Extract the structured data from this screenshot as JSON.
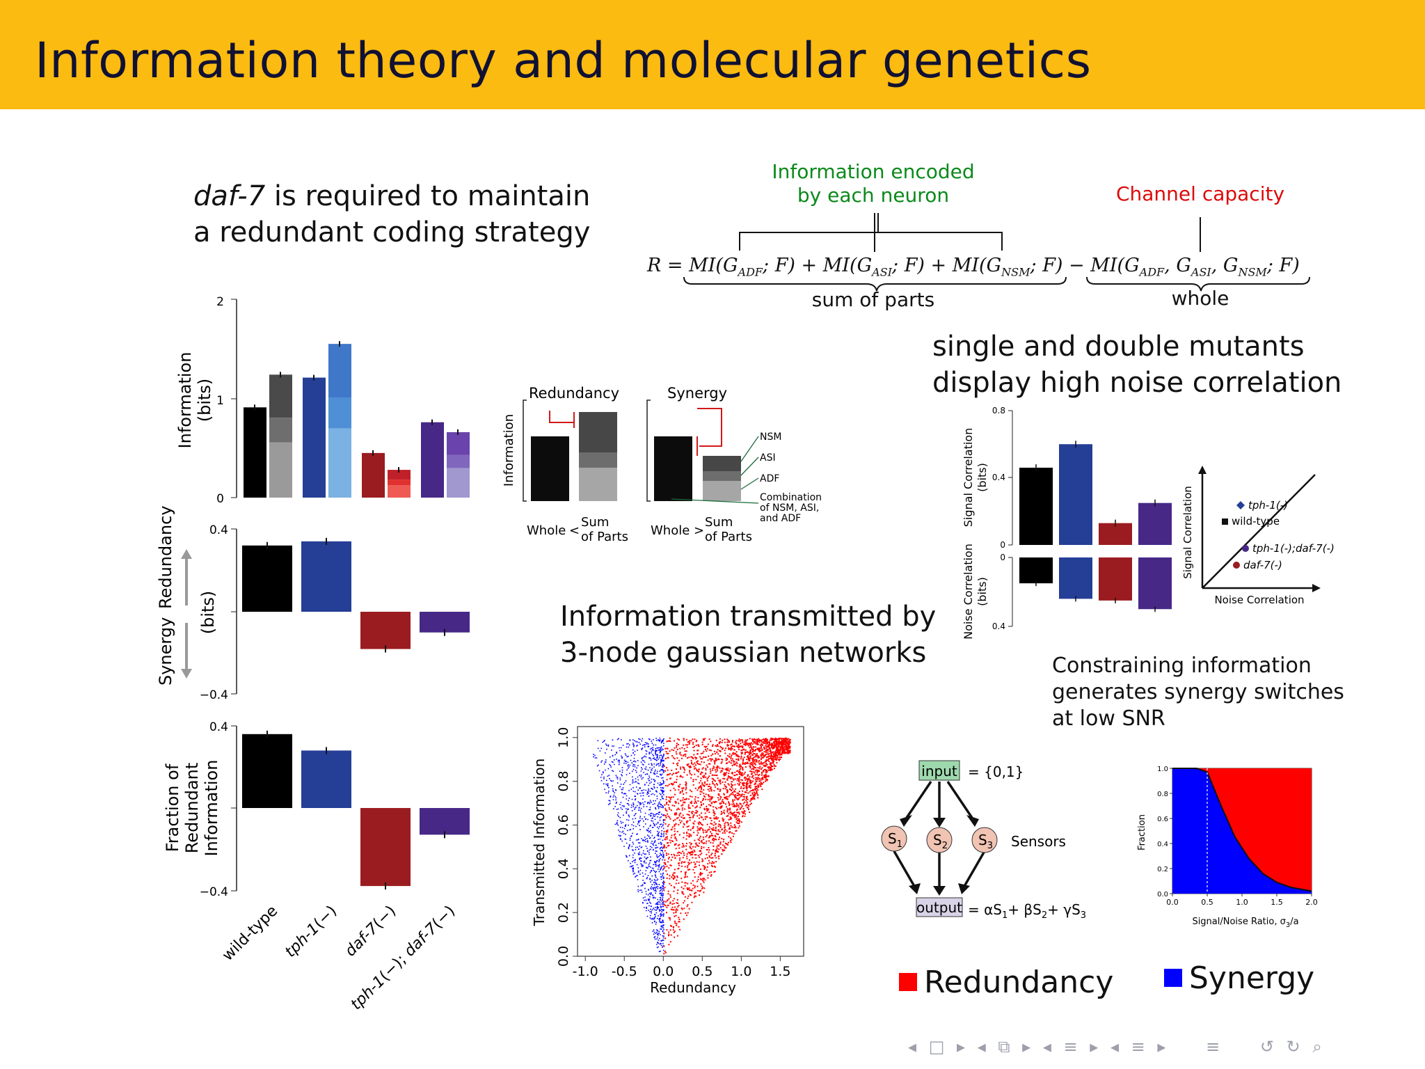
{
  "slide": {
    "title": "Information theory and molecular genetics",
    "colors": {
      "header": "#fbbb10",
      "redundancy": "#ff0000",
      "synergy": "#0000ff",
      "wild_type": "#000000",
      "tph1": "#253e96",
      "daf7": "#9b1c20",
      "double": "#472887"
    }
  },
  "left_heading": {
    "line1_italic": "daf-7",
    "line1_rest": " is required to maintain",
    "line2": "a redundant coding strategy"
  },
  "equation": {
    "encoded_label_1": "Information encoded",
    "encoded_label_2": "by each neuron",
    "capacity_label": "Channel capacity",
    "formula": "R = MI(G_ADF; F) + MI(G_ASI; F) + MI(G_NSM; F) − MI(G_ADF, G_ASI, G_NSM; F)",
    "sum_label": "sum of parts",
    "whole_label": "whole"
  },
  "panels": {
    "information": {
      "ylabel_1": "Information",
      "ylabel_2": "(bits)",
      "ticks": [
        "2",
        "1",
        "0"
      ],
      "chart_data": {
        "type": "bar",
        "categories": [
          "wild-type",
          "tph-1(−)",
          "daf-7(−)",
          "tph-1(−); daf-7(−)"
        ],
        "ylim": [
          0,
          2
        ],
        "series": [
          {
            "name": "Whole",
            "values": [
              0.91,
              1.21,
              0.45,
              0.76
            ]
          },
          {
            "name": "Sum of Parts",
            "values": [
              1.24,
              1.55,
              0.28,
              0.66
            ]
          }
        ]
      }
    },
    "redundancy": {
      "label_redundancy": "Redundancy",
      "label_synergy": "Synergy",
      "ylabel": "(bits)",
      "ticks": [
        "0.4",
        "−0.4"
      ],
      "chart_data": {
        "type": "bar",
        "categories": [
          "wild-type",
          "tph-1(−)",
          "daf-7(−)",
          "tph-1(−); daf-7(−)"
        ],
        "ylim": [
          -0.4,
          0.4
        ],
        "values": [
          0.32,
          0.34,
          -0.18,
          -0.1
        ]
      }
    },
    "fraction": {
      "ylabel_1": "Fraction of",
      "ylabel_2": "Redundant",
      "ylabel_3": "Information",
      "ticks": [
        "0.4",
        "−0.4"
      ],
      "chart_data": {
        "type": "bar",
        "categories": [
          "wild-type",
          "tph-1(−)",
          "daf-7(−)",
          "tph-1(−); daf-7(−)"
        ],
        "ylim": [
          -0.4,
          0.4
        ],
        "values": [
          0.36,
          0.28,
          -0.38,
          -0.13
        ]
      }
    },
    "categories": {
      "c1": "wild-type",
      "c2_a": "tph-1",
      "c2_b": "(−)",
      "c3_a": "daf-7",
      "c3_b": "(−)",
      "c4_a": "tph-1",
      "c4_b": "(−); ",
      "c4_c": "daf-7",
      "c4_d": "(−)"
    }
  },
  "schematic": {
    "ylabel": "Information",
    "redundancy_title": "Redundancy",
    "synergy_title": "Synergy",
    "whole": "Whole",
    "lt": "<",
    "gt": ">",
    "sum_1": "Sum",
    "sum_2": "of Parts",
    "legend": [
      "NSM",
      "ASI",
      "ADF",
      "Combination",
      "of NSM, ASI,",
      "and ADF"
    ]
  },
  "noise": {
    "heading_1": "single and double mutants",
    "heading_2": "display high noise correlation",
    "signal_ylabel_1": "Signal Correlation",
    "signal_ylabel_2": "(bits)",
    "noise_ylabel_1": "Noise Correlation",
    "noise_ylabel_2": "(bits)",
    "signal_ticks": [
      "0.8",
      "0.4",
      "0"
    ],
    "noise_ticks": [
      "0",
      "0.4"
    ],
    "chart_data": {
      "type": "bar",
      "categories": [
        "wild-type",
        "tph-1(−)",
        "daf-7(−)",
        "tph-1(−); daf-7(−)"
      ],
      "series": [
        {
          "name": "Signal Correlation",
          "values": [
            0.46,
            0.6,
            0.13,
            0.25
          ],
          "ylim": [
            0,
            0.8
          ]
        },
        {
          "name": "Noise Correlation",
          "values": [
            0.15,
            0.24,
            0.25,
            0.3
          ],
          "ylim": [
            0,
            0.4
          ]
        }
      ]
    },
    "diagram": {
      "y_axis": "Signal Correlation",
      "x_axis": "Noise Correlation",
      "items": [
        "tph-1(-)",
        "wild-type",
        "tph-1(-);daf-7(-)",
        "daf-7(-)"
      ]
    }
  },
  "gaussian": {
    "heading_1": "Information transmitted by",
    "heading_2": "3-node gaussian networks",
    "chart_data": {
      "type": "scatter",
      "xlabel": "Redundancy",
      "ylabel": "Transmitted Information",
      "xlim": [
        -1.1,
        1.8
      ],
      "ylim": [
        0,
        1.05
      ],
      "x_ticks": [
        "-1.0",
        "-0.5",
        "0.0",
        "0.5",
        "1.0",
        "1.5"
      ],
      "y_ticks": [
        "0.0",
        "0.2",
        "0.4",
        "0.6",
        "0.8",
        "1.0"
      ],
      "series": [
        {
          "name": "Synergy",
          "color": "#0000ff",
          "x_range": [
            -1.0,
            0.0
          ]
        },
        {
          "name": "Redundancy",
          "color": "#ff0000",
          "x_range": [
            0.0,
            1.7
          ]
        }
      ]
    }
  },
  "network": {
    "input": "input",
    "input_eq": "= {0,1}",
    "s1": "S",
    "s1_sub": "1",
    "s2": "S",
    "s2_sub": "2",
    "s3": "S",
    "s3_sub": "3",
    "sensors": "Sensors",
    "output": "output",
    "output_eq": "= αS",
    "output_eq_1": "1",
    "output_eq_2": "+ βS",
    "output_eq_3": "2",
    "output_eq_4": "+ γS",
    "output_eq_5": "3"
  },
  "snr": {
    "heading_1": "Constraining information",
    "heading_2": "generates synergy switches",
    "heading_3": "at low SNR",
    "ylabel": "Fraction",
    "xlabel": "Signal/Noise Ratio, σ",
    "xlabel_sub": "3",
    "xlabel_tail": "/a",
    "chart_data": {
      "type": "area",
      "xlim": [
        0,
        2.0
      ],
      "ylim": [
        0,
        1.0
      ],
      "x_ticks": [
        "0.0",
        "0.5",
        "1.0",
        "1.5",
        "2.0"
      ],
      "y_ticks": [
        "1.0",
        "0.8",
        "0.6",
        "0.4",
        "0.2",
        "0.0"
      ],
      "x": [
        0,
        0.35,
        0.5,
        0.7,
        0.9,
        1.1,
        1.3,
        1.5,
        1.7,
        2.0
      ],
      "series": [
        {
          "name": "Synergy",
          "color": "#0000ff",
          "values": [
            1.0,
            1.0,
            0.97,
            0.7,
            0.45,
            0.28,
            0.16,
            0.09,
            0.05,
            0.02
          ]
        },
        {
          "name": "Redundancy",
          "color": "#ff0000",
          "values": [
            0.0,
            0.0,
            0.03,
            0.3,
            0.55,
            0.72,
            0.84,
            0.91,
            0.95,
            0.98
          ]
        }
      ]
    }
  },
  "legend": {
    "redundancy": "Redundancy",
    "synergy": "Synergy"
  },
  "nav": [
    "◂",
    "□",
    "▸",
    "◂",
    "⧉",
    "▸",
    "◂",
    "≡",
    "▸",
    "◂",
    "≡",
    "▸",
    "≡",
    "↺",
    "↻",
    "⌕"
  ]
}
